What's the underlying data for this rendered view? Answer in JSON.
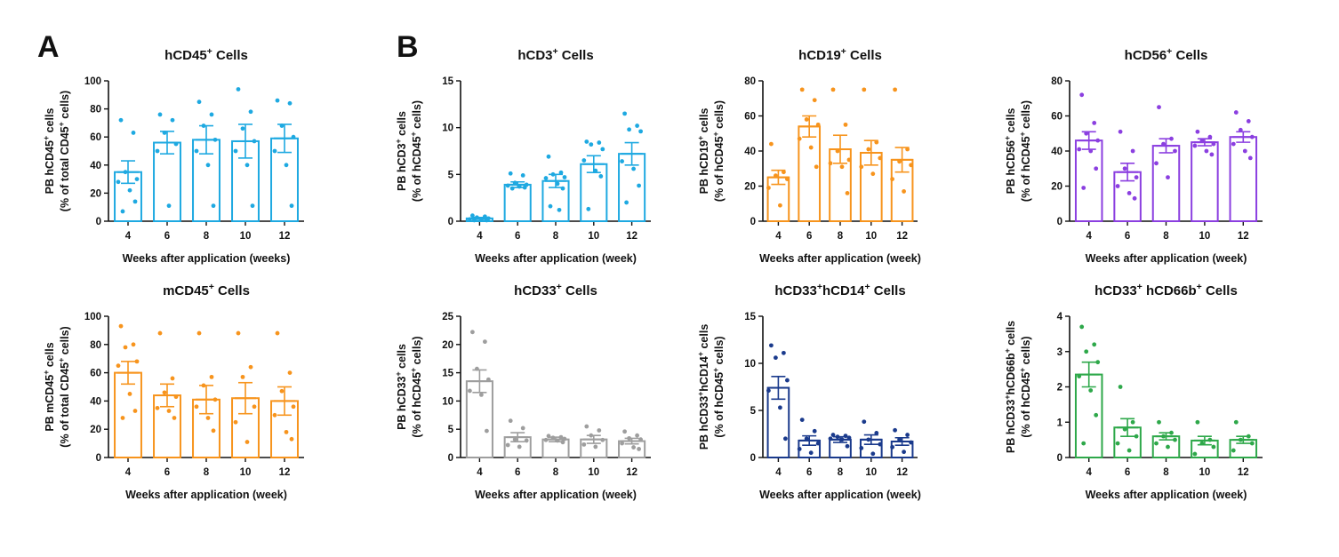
{
  "panels": [
    {
      "letter": "A"
    },
    {
      "letter": "B"
    }
  ],
  "chart_data": [
    {
      "type": "bar",
      "title": "hCD45⁺ Cells",
      "ylabel": [
        "PB hCD45⁺ cells",
        "(% of total CD45⁺ cells)"
      ],
      "xlabel": "Weeks after application (weeks)",
      "categories": [
        "4",
        "6",
        "8",
        "10",
        "12"
      ],
      "ylim": [
        0,
        100
      ],
      "yticks": [
        0,
        20,
        40,
        60,
        80,
        100
      ],
      "color": "#1ea9e1",
      "means": [
        35,
        56,
        58,
        57,
        59
      ],
      "sem": [
        8,
        8,
        10,
        12,
        10
      ],
      "points": [
        [
          72,
          63,
          35,
          30,
          28,
          22,
          14,
          7
        ],
        [
          76,
          72,
          63,
          55,
          50,
          11
        ],
        [
          85,
          76,
          68,
          58,
          50,
          40,
          11
        ],
        [
          94,
          78,
          66,
          57,
          50,
          40,
          11
        ],
        [
          86,
          84,
          68,
          60,
          50,
          40,
          11
        ]
      ]
    },
    {
      "type": "bar",
      "title": "hCD3⁺ Cells",
      "ylabel": [
        "PB hCD3⁺ cells",
        "(% of hCD45⁺ cells)"
      ],
      "xlabel": "Weeks after application (week)",
      "categories": [
        "4",
        "6",
        "8",
        "10",
        "12"
      ],
      "ylim": [
        0,
        15
      ],
      "yticks": [
        0,
        5,
        10,
        15
      ],
      "color": "#1ea9e1",
      "means": [
        0.3,
        3.9,
        4.3,
        6.1,
        7.2
      ],
      "sem": [
        0.1,
        0.3,
        0.7,
        0.9,
        1.2
      ],
      "points": [
        [
          0.6,
          0.5,
          0.4,
          0.3,
          0.2,
          0.2,
          0.1,
          0.1
        ],
        [
          5.1,
          4.9,
          4.1,
          3.9,
          3.8,
          3.7,
          3.6,
          3.5
        ],
        [
          6.9,
          5.2,
          5.0,
          4.7,
          4.6,
          4.0,
          3.5,
          1.6,
          1.2
        ],
        [
          8.5,
          8.4,
          8.2,
          7.7,
          6.5,
          5.4,
          4.8,
          1.3
        ],
        [
          11.5,
          10.2,
          9.8,
          9.6,
          6.4,
          5.6,
          3.8,
          2.0
        ]
      ]
    },
    {
      "type": "bar",
      "title": "hCD19⁺ Cells",
      "ylabel": [
        "PB hCD19⁺ cells",
        "(% of hCD45⁺ cells)"
      ],
      "xlabel": "Weeks after application (week)",
      "categories": [
        "4",
        "6",
        "8",
        "10",
        "12"
      ],
      "ylim": [
        0,
        80
      ],
      "yticks": [
        0,
        20,
        40,
        60,
        80
      ],
      "color": "#f7941d",
      "means": [
        25,
        54,
        41,
        39,
        35
      ],
      "sem": [
        4,
        6,
        8,
        7,
        7
      ],
      "points": [
        [
          44,
          28,
          26,
          24,
          19,
          9
        ],
        [
          75,
          69,
          58,
          55,
          47,
          42,
          31
        ],
        [
          75,
          55,
          40,
          35,
          33,
          31,
          16
        ],
        [
          75,
          45,
          41,
          36,
          31,
          27
        ],
        [
          75,
          41,
          34,
          32,
          24,
          17
        ]
      ]
    },
    {
      "type": "bar",
      "title": "hCD56⁺ Cells",
      "ylabel": [
        "PB hCD56⁺ cells",
        "(% of hCD45⁺ cells)"
      ],
      "xlabel": "Weeks after application (week)",
      "categories": [
        "4",
        "6",
        "8",
        "10",
        "12"
      ],
      "ylim": [
        0,
        80
      ],
      "yticks": [
        0,
        20,
        40,
        60,
        80
      ],
      "color": "#8b3fe0",
      "means": [
        46,
        28,
        43,
        45,
        48
      ],
      "sem": [
        5,
        5,
        4,
        2,
        3
      ],
      "points": [
        [
          72,
          56,
          50,
          46,
          41,
          40,
          30,
          19
        ],
        [
          51,
          40,
          30,
          25,
          20,
          16,
          13
        ],
        [
          65,
          47,
          44,
          40,
          33,
          25
        ],
        [
          51,
          48,
          46,
          44,
          43,
          40,
          38
        ],
        [
          62,
          57,
          52,
          48,
          44,
          40,
          36
        ]
      ]
    },
    {
      "type": "bar",
      "title": "mCD45⁺ Cells",
      "ylabel": [
        "PB mCD45⁺ cells",
        "(% of total CD45⁺ cells)"
      ],
      "xlabel": "Weeks after application (week)",
      "categories": [
        "4",
        "6",
        "8",
        "10",
        "12"
      ],
      "ylim": [
        0,
        100
      ],
      "yticks": [
        0,
        20,
        40,
        60,
        80,
        100
      ],
      "color": "#f7941d",
      "means": [
        60,
        44,
        41,
        42,
        40
      ],
      "sem": [
        8,
        8,
        10,
        11,
        10
      ],
      "points": [
        [
          93,
          80,
          78,
          68,
          65,
          45,
          33,
          28
        ],
        [
          88,
          56,
          46,
          43,
          35,
          33,
          28
        ],
        [
          88,
          57,
          51,
          41,
          36,
          28,
          19
        ],
        [
          88,
          64,
          57,
          36,
          25,
          11
        ],
        [
          88,
          60,
          47,
          36,
          30,
          18,
          13
        ]
      ]
    },
    {
      "type": "bar",
      "title": "hCD33⁺ Cells",
      "ylabel": [
        "PB hCD33⁺ cells",
        "(% of hCD45⁺ cells)"
      ],
      "xlabel": "Weeks after application (week)",
      "categories": [
        "4",
        "6",
        "8",
        "10",
        "12"
      ],
      "ylim": [
        0,
        25
      ],
      "yticks": [
        0,
        5,
        10,
        15,
        20,
        25
      ],
      "color": "#9e9e9e",
      "means": [
        13.5,
        3.6,
        3.2,
        3.2,
        2.9
      ],
      "sem": [
        2.0,
        0.8,
        0.4,
        0.7,
        0.5
      ],
      "points": [
        [
          22.2,
          20.5,
          15.7,
          13.8,
          11.8,
          11.1,
          4.7
        ],
        [
          6.5,
          5.2,
          3.2,
          3.0,
          2.2,
          1.9
        ],
        [
          3.8,
          3.6,
          3.5,
          3.3,
          3.1,
          3.0,
          2.7
        ],
        [
          5.5,
          4.8,
          3.9,
          3.1,
          2.3,
          1.9
        ],
        [
          4.6,
          3.9,
          3.4,
          3.2,
          2.5,
          1.8,
          1.5
        ]
      ]
    },
    {
      "type": "bar",
      "title": "hCD33⁺hCD14⁺ Cells",
      "ylabel": [
        "PB hCD33⁺hCD14⁺ cells",
        "(% of hCD45⁺ cells)"
      ],
      "xlabel": "Weeks after application (week)",
      "categories": [
        "4",
        "6",
        "8",
        "10",
        "12"
      ],
      "ylim": [
        0,
        15
      ],
      "yticks": [
        0,
        5,
        10,
        15
      ],
      "color": "#1a3a8c",
      "means": [
        7.4,
        1.8,
        1.9,
        1.9,
        1.7
      ],
      "sem": [
        1.2,
        0.5,
        0.3,
        0.5,
        0.4
      ],
      "points": [
        [
          11.9,
          11.1,
          10.6,
          8.2,
          7.1,
          5.3,
          2.0
        ],
        [
          4.0,
          2.8,
          2.0,
          1.5,
          0.9,
          0.5
        ],
        [
          2.4,
          2.3,
          2.2,
          2.1,
          2.0,
          1.9,
          1.2
        ],
        [
          3.8,
          2.6,
          1.9,
          1.4,
          1.0,
          0.4
        ],
        [
          2.9,
          2.4,
          1.9,
          1.6,
          1.1,
          0.6
        ]
      ]
    },
    {
      "type": "bar",
      "title": "hCD33⁺ hCD66b⁺ Cells",
      "ylabel": [
        "PB hCD33⁺hCD66b⁺ cells",
        "(% of hCD45⁺ cells)"
      ],
      "xlabel": "Weeks after application (week)",
      "categories": [
        "4",
        "6",
        "8",
        "10",
        "12"
      ],
      "ylim": [
        0,
        4
      ],
      "yticks": [
        0,
        1,
        2,
        3,
        4
      ],
      "color": "#2ea84a",
      "means": [
        2.35,
        0.85,
        0.6,
        0.48,
        0.5
      ],
      "sem": [
        0.35,
        0.25,
        0.1,
        0.12,
        0.1
      ],
      "points": [
        [
          3.7,
          3.2,
          3.0,
          2.7,
          2.3,
          1.9,
          1.2,
          0.4
        ],
        [
          2.0,
          1.0,
          0.8,
          0.6,
          0.4,
          0.2
        ],
        [
          1.0,
          0.7,
          0.6,
          0.5,
          0.4,
          0.3
        ],
        [
          1.0,
          0.5,
          0.4,
          0.3,
          0.1
        ],
        [
          1.0,
          0.6,
          0.5,
          0.4,
          0.2
        ]
      ]
    }
  ]
}
